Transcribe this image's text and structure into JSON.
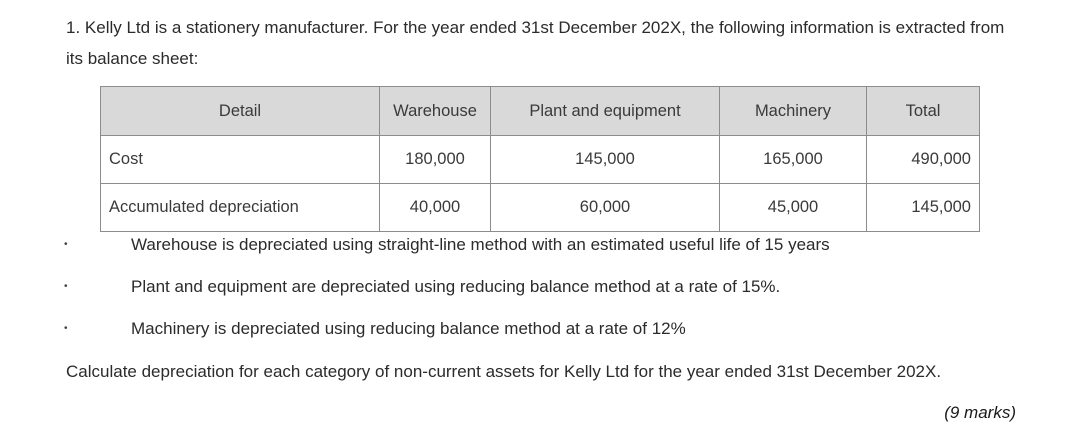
{
  "question": {
    "intro": "1. Kelly Ltd is a stationery manufacturer. For the year ended 31st December 202X, the following information is extracted from its balance sheet:",
    "table": {
      "headers": [
        "Detail",
        "Warehouse",
        "Plant and equipment",
        "Machinery",
        "Total"
      ],
      "rows": [
        {
          "label": "Cost",
          "warehouse": "180,000",
          "plant": "145,000",
          "machinery": "165,000",
          "total": "490,000"
        },
        {
          "label": "Accumulated depreciation",
          "warehouse": "40,000",
          "plant": "60,000",
          "machinery": "45,000",
          "total": "145,000"
        }
      ]
    },
    "bullets": [
      "Warehouse is depreciated using straight-line method with an estimated useful life of 15 years",
      "Plant and equipment are depreciated using reducing balance method at a rate of 15%.",
      "Machinery is depreciated using reducing balance method at a rate of 12%"
    ],
    "bullet_symbol": "•",
    "task": "Calculate depreciation for each category of non-current assets for Kelly Ltd for the year ended 31st December 202X.",
    "marks": "(9 marks)"
  }
}
